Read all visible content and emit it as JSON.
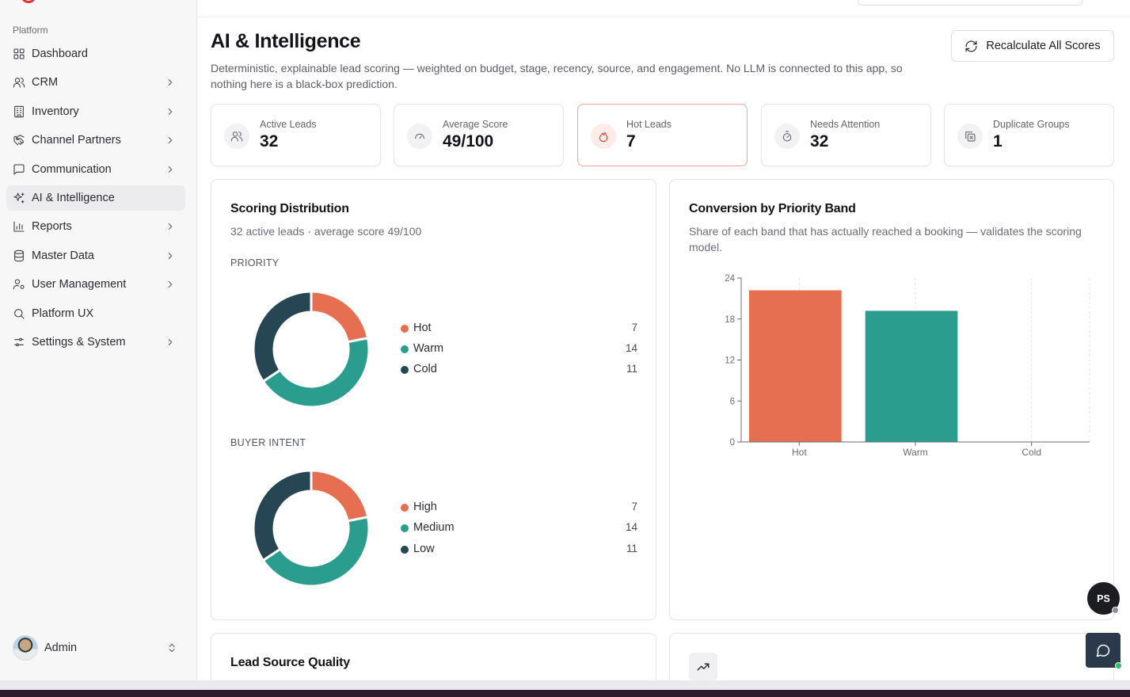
{
  "sidebar": {
    "section_label": "Platform",
    "items": [
      {
        "label": "Dashboard",
        "icon": "dashboard-icon",
        "chevron": false,
        "active": false
      },
      {
        "label": "CRM",
        "icon": "users-icon",
        "chevron": true,
        "active": false
      },
      {
        "label": "Inventory",
        "icon": "building-icon",
        "chevron": true,
        "active": false
      },
      {
        "label": "Channel Partners",
        "icon": "handshake-icon",
        "chevron": true,
        "active": false
      },
      {
        "label": "Communication",
        "icon": "message-square-icon",
        "chevron": true,
        "active": false
      },
      {
        "label": "AI & Intelligence",
        "icon": "sparkles-icon",
        "chevron": false,
        "active": true
      },
      {
        "label": "Reports",
        "icon": "bar-chart-icon",
        "chevron": true,
        "active": false
      },
      {
        "label": "Master Data",
        "icon": "database-icon",
        "chevron": true,
        "active": false
      },
      {
        "label": "User Management",
        "icon": "user-cog-icon",
        "chevron": true,
        "active": false
      },
      {
        "label": "Platform UX",
        "icon": "search-icon",
        "chevron": false,
        "active": false
      },
      {
        "label": "Settings & System",
        "icon": "settings-sliders-icon",
        "chevron": true,
        "active": false
      }
    ],
    "user": {
      "name": "Admin"
    }
  },
  "header": {
    "title": "AI & Intelligence",
    "description": "Deterministic, explainable lead scoring — weighted on budget, stage, recency, source, and engagement. No LLM is connected to this app, so nothing here is a black-box prediction.",
    "recalc_label": "Recalculate All Scores"
  },
  "stats": [
    {
      "label": "Active Leads",
      "value": "32",
      "icon": "users-icon"
    },
    {
      "label": "Average Score",
      "value": "49/100",
      "icon": "gauge-icon"
    },
    {
      "label": "Hot Leads",
      "value": "7",
      "icon": "flame-icon"
    },
    {
      "label": "Needs Attention",
      "value": "32",
      "icon": "timer-icon"
    },
    {
      "label": "Duplicate Groups",
      "value": "1",
      "icon": "copy-x-icon"
    }
  ],
  "scoring": {
    "title": "Scoring Distribution",
    "subtitle": "32 active leads · average score 49/100",
    "priority_label": "PRIORITY",
    "priority": [
      {
        "label": "Hot",
        "value": 7,
        "color": "#e76f51"
      },
      {
        "label": "Warm",
        "value": 14,
        "color": "#2a9d8f"
      },
      {
        "label": "Cold",
        "value": 11,
        "color": "#264653"
      }
    ],
    "intent_label": "BUYER INTENT",
    "intent": [
      {
        "label": "High",
        "value": 7,
        "color": "#e76f51"
      },
      {
        "label": "Medium",
        "value": 14,
        "color": "#2a9d8f"
      },
      {
        "label": "Low",
        "value": 11,
        "color": "#264653"
      }
    ]
  },
  "conversion": {
    "title": "Conversion by Priority Band",
    "subtitle": "Share of each band that has actually reached a booking — validates the scoring model."
  },
  "chart_data": {
    "type": "bar",
    "categories": [
      "Hot",
      "Warm",
      "Cold"
    ],
    "values": [
      22.2,
      19.2,
      0
    ],
    "colors": [
      "#e76f51",
      "#2a9d8f",
      "#264653"
    ],
    "yticks": [
      "0",
      "6",
      "12",
      "18",
      "24"
    ],
    "ylim": [
      0,
      24
    ],
    "grid": "vertical dashed"
  },
  "lead_source": {
    "title": "Lead Source Quality"
  },
  "widgets": {
    "ps_initials": "PS"
  }
}
